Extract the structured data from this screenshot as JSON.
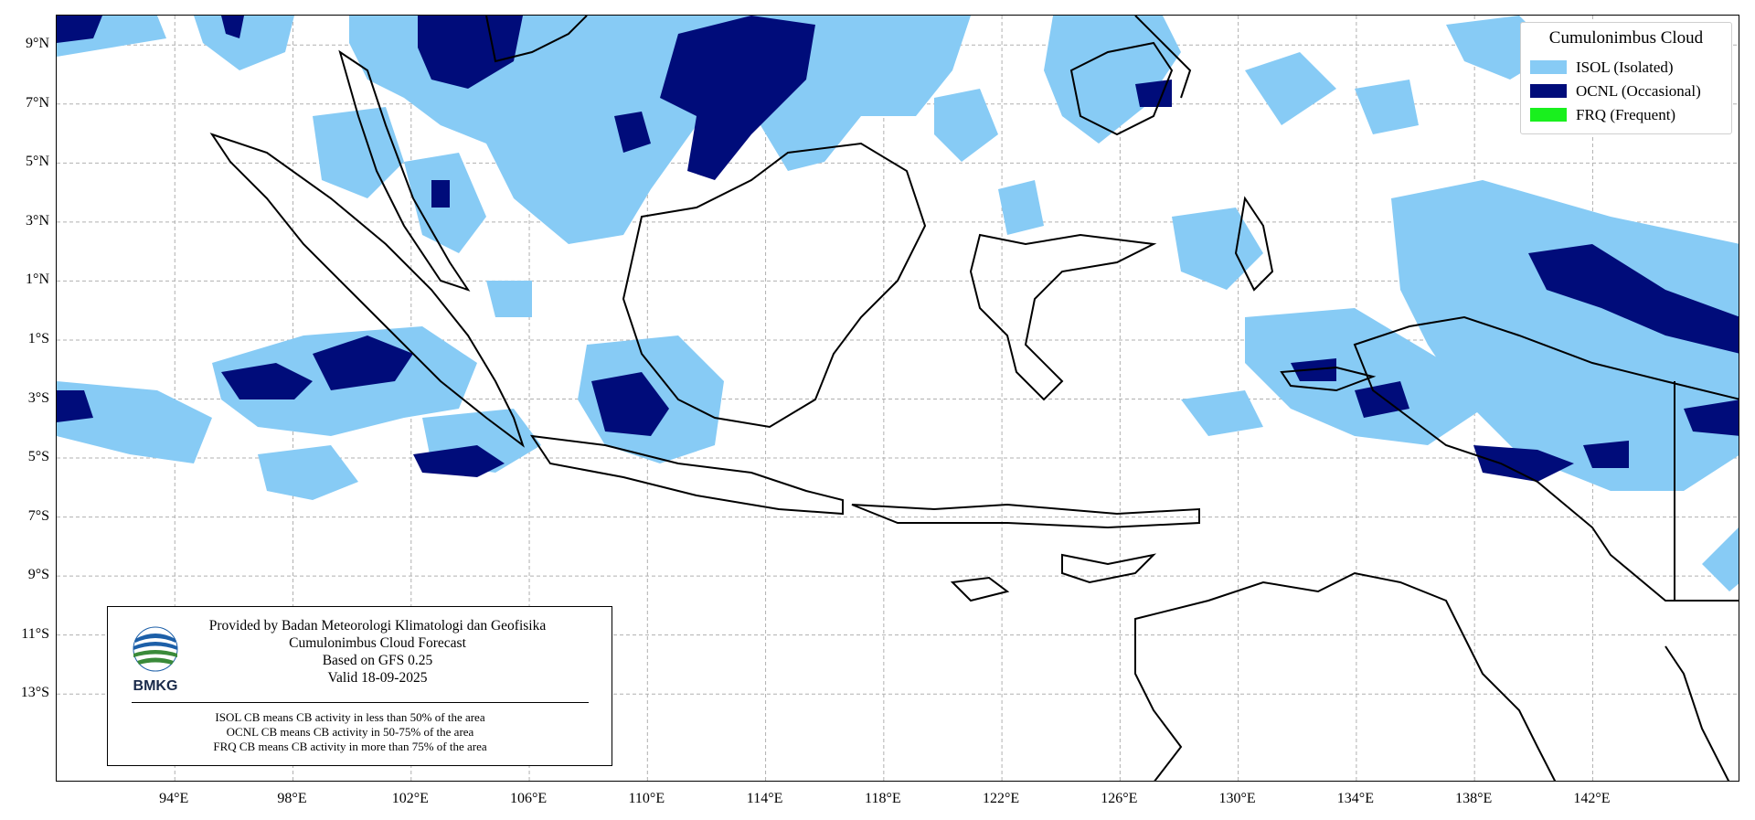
{
  "legend": {
    "title": "Cumulonimbus Cloud",
    "items": [
      {
        "label": "ISOL (Isolated)",
        "color": "#87cbf5"
      },
      {
        "label": "OCNL (Occasional)",
        "color": "#000c7a"
      },
      {
        "label": "FRQ (Frequent)",
        "color": "#19f01e"
      }
    ]
  },
  "map": {
    "lon_range": [
      90,
      147
    ],
    "lat_range": [
      -16,
      10
    ],
    "lat_ticks": [
      "9°N",
      "7°N",
      "5°N",
      "3°N",
      "1°N",
      "1°S",
      "3°S",
      "5°S",
      "7°S",
      "9°S",
      "11°S",
      "13°S"
    ],
    "lon_ticks": [
      "94°E",
      "98°E",
      "102°E",
      "106°E",
      "110°E",
      "114°E",
      "118°E",
      "122°E",
      "126°E",
      "130°E",
      "134°E",
      "138°E",
      "142°E"
    ],
    "grid_lines": true,
    "land_outline_color": "#000000"
  },
  "info": {
    "provider": "Provided by Badan Meteorologi Klimatologi dan Geofisika",
    "product": "Cumulonimbus Cloud Forecast",
    "model": "Based on GFS 0.25",
    "valid": "Valid 18-09-2025",
    "logo_text": "BMKG",
    "definitions": [
      "ISOL CB means CB activity in less than 50% of the area",
      "OCNL CB means CB activity in 50-75% of the area",
      "FRQ CB means CB activity in more than 75% of the area"
    ]
  }
}
